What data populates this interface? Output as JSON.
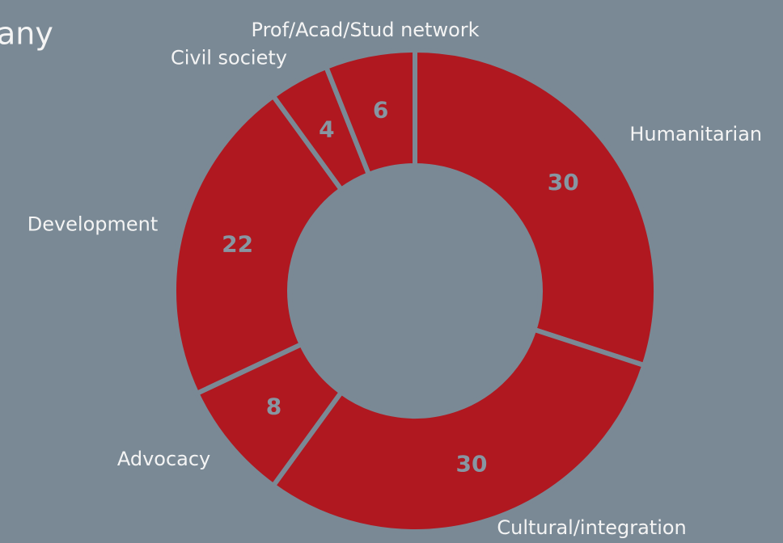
{
  "chart_data": {
    "type": "pie",
    "title": "any",
    "categories": [
      "Humanitarian",
      "Cultural/integration",
      "Advocacy",
      "Development",
      "Civil society",
      "Prof/Acad/Stud network"
    ],
    "values": [
      30,
      30,
      8,
      22,
      4,
      6
    ],
    "color": "#b01820",
    "donut": true
  }
}
